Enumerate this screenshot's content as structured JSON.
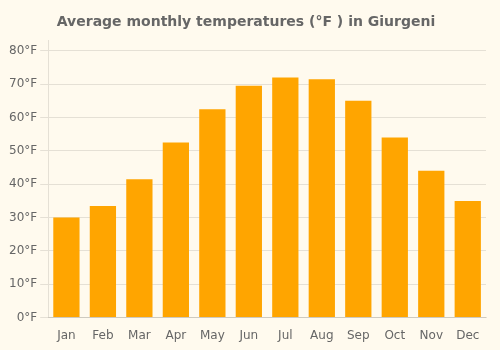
{
  "chart_data": {
    "type": "bar",
    "title": "Average monthly temperatures (°F ) in Giurgeni",
    "categories": [
      "Jan",
      "Feb",
      "Mar",
      "Apr",
      "May",
      "Jun",
      "Jul",
      "Aug",
      "Sep",
      "Oct",
      "Nov",
      "Dec"
    ],
    "values": [
      30,
      33.5,
      41.5,
      52.5,
      62.5,
      69.5,
      72,
      71.5,
      65,
      54,
      44,
      35
    ],
    "color": "#FFA500",
    "ylim": [
      0,
      83
    ],
    "yticks": [
      {
        "value": 0,
        "label": "0°F"
      },
      {
        "value": 10,
        "label": "10°F"
      },
      {
        "value": 20,
        "label": "20°F"
      },
      {
        "value": 30,
        "label": "30°F"
      },
      {
        "value": 40,
        "label": "40°F"
      },
      {
        "value": 50,
        "label": "50°F"
      },
      {
        "value": 60,
        "label": "60°F"
      },
      {
        "value": 70,
        "label": "70°F"
      },
      {
        "value": 80,
        "label": "80°F"
      }
    ],
    "grid": true
  }
}
